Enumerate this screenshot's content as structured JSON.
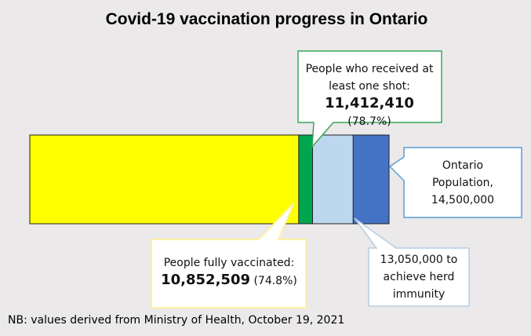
{
  "chart_data": {
    "type": "bar",
    "orientation": "horizontal",
    "overlay": true,
    "title": "Covid-19 vaccination progress in Ontario",
    "note": "NB: values derived from Ministry of Health, October 19, 2021",
    "xlim": [
      0,
      14500000
    ],
    "series": [
      {
        "name": "People fully vaccinated:",
        "color": "#ffff00",
        "values": [
          10852509
        ],
        "value_labels": [
          "10,852,509"
        ],
        "percent_label": "(74.8%)"
      },
      {
        "name": "People who received at least one shot:",
        "color": "#00a550",
        "values": [
          11412410
        ],
        "value_labels": [
          "11,412,410"
        ],
        "percent_label": "(78.7%)"
      },
      {
        "name": "to achieve herd immunity",
        "color": "#bdd7ee",
        "values": [
          13050000
        ],
        "value_labels": [
          "13,050,000"
        ]
      },
      {
        "name": "Ontario Population,",
        "color": "#4472c4",
        "values": [
          14500000
        ],
        "value_labels": [
          "14,500,000"
        ]
      }
    ]
  }
}
